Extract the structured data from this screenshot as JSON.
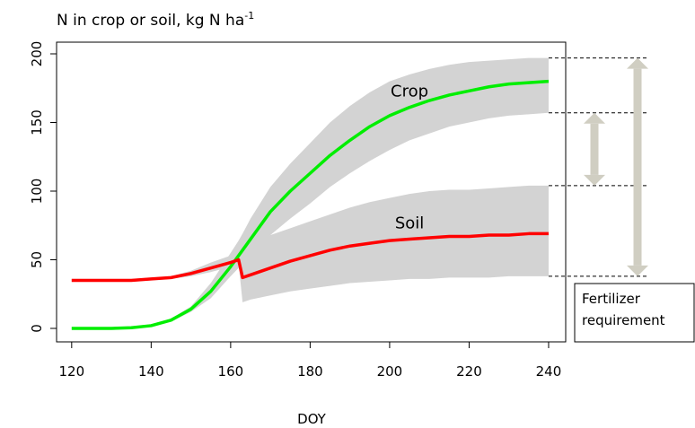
{
  "chart_data": {
    "type": "line",
    "title": "N in crop or soil, kg N ha",
    "title_superscript": "-1",
    "xlabel": "DOY",
    "x": [
      120,
      125,
      130,
      135,
      140,
      145,
      150,
      155,
      160,
      162,
      163,
      165,
      170,
      175,
      180,
      185,
      190,
      195,
      200,
      205,
      210,
      215,
      220,
      225,
      230,
      235,
      240
    ],
    "series": [
      {
        "name": "Crop",
        "color": "#00ee00",
        "values": [
          0,
          0,
          0,
          0.5,
          2,
          6,
          14,
          27,
          45,
          53,
          57,
          65,
          85,
          100,
          113,
          126,
          137,
          147,
          155,
          161,
          166,
          170,
          173,
          176,
          178,
          179,
          180
        ],
        "band_color": "#d3d3d3",
        "upper": [
          1,
          1,
          1,
          1.5,
          3,
          7,
          16,
          33,
          55,
          64,
          69,
          80,
          103,
          120,
          135,
          150,
          162,
          172,
          180,
          185,
          189,
          192,
          194,
          195,
          196,
          197,
          197
        ],
        "lower": [
          0,
          0,
          0,
          0,
          1,
          5,
          12,
          22,
          38,
          44,
          47,
          52,
          68,
          80,
          91,
          103,
          113,
          122,
          130,
          137,
          142,
          147,
          150,
          153,
          155,
          156,
          157
        ]
      },
      {
        "name": "Soil",
        "color": "#ff0000",
        "values": [
          35,
          35,
          35,
          35,
          36,
          37,
          40,
          44,
          48,
          50,
          37,
          39,
          44,
          49,
          53,
          57,
          60,
          62,
          64,
          65,
          66,
          67,
          67,
          68,
          68,
          69,
          69
        ],
        "band_color": "#d3d3d3",
        "upper": [
          36,
          36,
          36,
          36,
          37,
          38,
          42,
          48,
          53,
          56,
          57,
          62,
          68,
          73,
          78,
          83,
          88,
          92,
          95,
          98,
          100,
          101,
          101,
          102,
          103,
          104,
          104
        ],
        "lower": [
          34,
          34,
          34,
          34,
          35,
          36,
          38,
          41,
          45,
          47,
          19,
          21,
          24,
          27,
          29,
          31,
          33,
          34,
          35,
          36,
          36,
          37,
          37,
          37,
          38,
          38,
          38
        ]
      }
    ],
    "reference_levels": [
      197,
      157,
      104,
      38
    ],
    "annotation": [
      "Fertilizer",
      "requirement"
    ],
    "xlim": [
      116.2,
      244.3
    ],
    "ylim": [
      -9.8,
      208.5
    ],
    "xticks": [
      120,
      140,
      160,
      180,
      200,
      220,
      240
    ],
    "yticks": [
      0,
      50,
      100,
      150,
      200
    ]
  }
}
